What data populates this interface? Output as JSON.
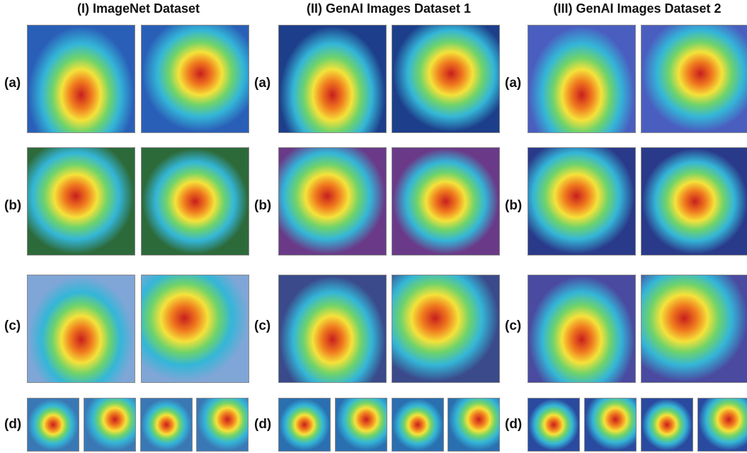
{
  "columns": [
    {
      "title": "(I) ImageNet Dataset",
      "rows": [
        "(a)",
        "(b)",
        "(c)",
        "(d)"
      ]
    },
    {
      "title": "(II) GenAI Images Dataset 1",
      "rows": [
        "(a)",
        "(b)",
        "(c)",
        "(d)"
      ]
    },
    {
      "title": "(III) GenAI Images Dataset 2",
      "rows": [
        "(a)",
        "(b)",
        "(c)",
        "(d)"
      ]
    }
  ]
}
